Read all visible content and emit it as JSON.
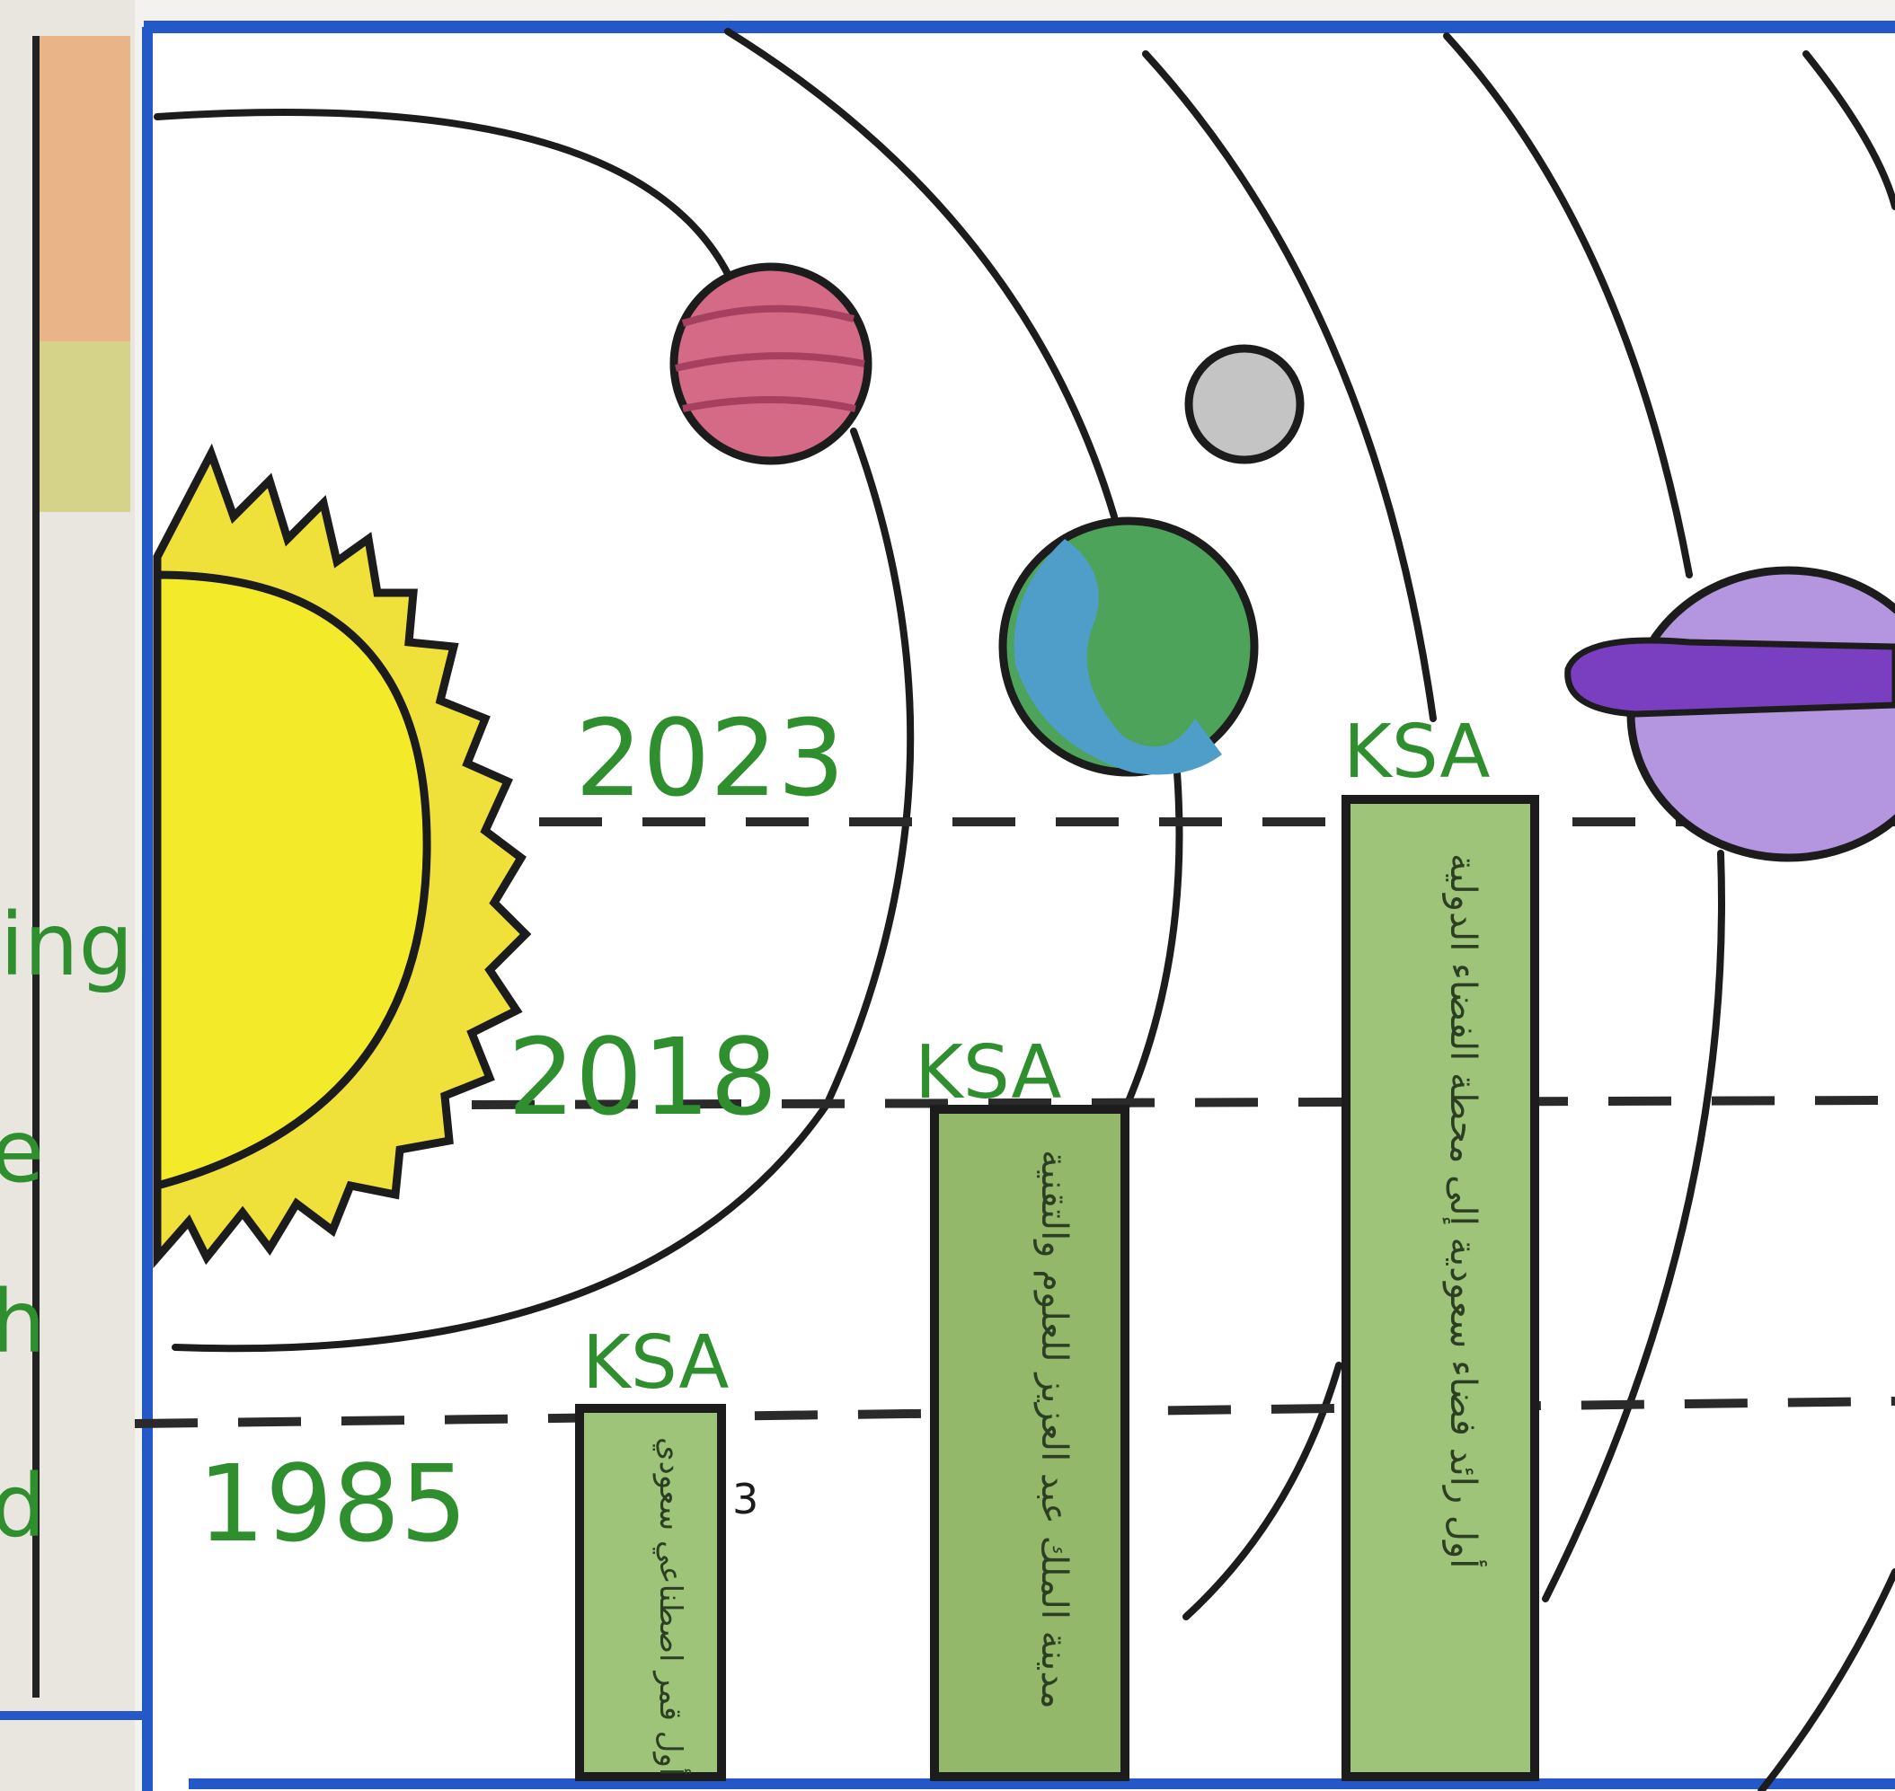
{
  "drawing": {
    "timeline": [
      {
        "year": "1985",
        "label": "KSA",
        "note": "أول قمر اصطناعي سعودي"
      },
      {
        "year": "2018",
        "label": "KSA",
        "note": "مدينة الملك عبد العزيز للعلوم والتقنية"
      },
      {
        "year": "2023",
        "label": "KSA",
        "note": "أول رائد فضاء سعودية إلى محطة الفضاء الدولية"
      }
    ],
    "edge_letters": [
      "ing",
      "e",
      "h",
      "d"
    ],
    "small_mark": "3"
  },
  "colors": {
    "frame_blue": "#2457c8",
    "sun_yellow": "#f3e62a",
    "sun_edge": "#c9c94a",
    "bar_green": "#93b86a",
    "text_green": "#2f8f2f",
    "planet_pink": "#d46a86",
    "planet_purple": "#9b6fd0",
    "earth_green": "#4ea35a",
    "earth_blue": "#4f9ec9",
    "moon_gray": "#bdbdbd"
  }
}
